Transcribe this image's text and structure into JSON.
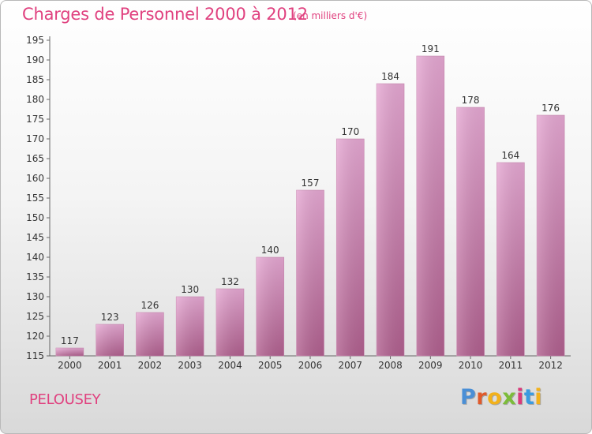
{
  "header": {
    "title": "Charges de Personnel 2000 à 2012",
    "subtitle": "(en milliers d'€)"
  },
  "footer": {
    "commune": "PELOUSEY",
    "logo_letters": [
      "P",
      "r",
      "o",
      "x",
      "i",
      "t",
      "i"
    ],
    "logo_colors": [
      "#4a8fd6",
      "#e05a2b",
      "#f2b11b",
      "#7cbc3a",
      "#d93a7a",
      "#3a9be0",
      "#f2b11b"
    ]
  },
  "chart_data": {
    "type": "bar",
    "categories": [
      "2000",
      "2001",
      "2002",
      "2003",
      "2004",
      "2005",
      "2006",
      "2007",
      "2008",
      "2009",
      "2010",
      "2011",
      "2012"
    ],
    "values": [
      117,
      123,
      126,
      130,
      132,
      140,
      157,
      170,
      184,
      191,
      178,
      164,
      176
    ],
    "ylim": [
      115,
      195
    ],
    "yticks": [
      115,
      120,
      125,
      130,
      135,
      140,
      145,
      150,
      155,
      160,
      165,
      170,
      175,
      180,
      185,
      190,
      195
    ],
    "title": "Charges de Personnel 2000 à 2012",
    "subtitle": "(en milliers d'€)",
    "xlabel": "",
    "ylabel": "",
    "grid": false,
    "bar_color": "#d98fbc",
    "axis_color": "#666666",
    "text_color": "#333333"
  }
}
